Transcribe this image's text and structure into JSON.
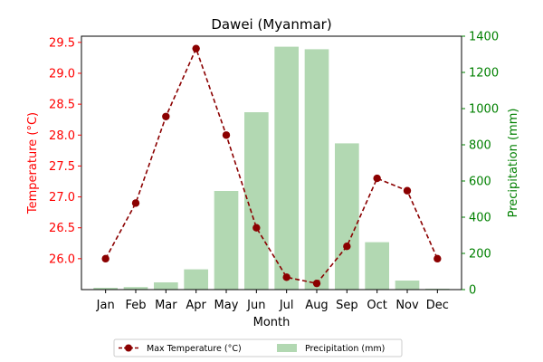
{
  "chart_data": {
    "type": "bar+line",
    "title": "Dawei (Myanmar)",
    "xlabel": "Month",
    "ylabel_left": "Temperature (°C)",
    "ylabel_right": "Precipitation (mm)",
    "categories": [
      "Jan",
      "Feb",
      "Mar",
      "Apr",
      "May",
      "Jun",
      "Jul",
      "Aug",
      "Sep",
      "Oct",
      "Nov",
      "Dec"
    ],
    "series": [
      {
        "name": "Max Temperature (°C)",
        "type": "line",
        "axis": "left",
        "values": [
          26.0,
          26.9,
          28.3,
          29.4,
          28.0,
          26.5,
          25.7,
          25.6,
          26.2,
          27.3,
          27.1,
          26.0
        ]
      },
      {
        "name": "Precipitation (mm)",
        "type": "bar",
        "axis": "right",
        "values": [
          10,
          14,
          40,
          112,
          545,
          980,
          1342,
          1328,
          808,
          262,
          50,
          5
        ]
      }
    ],
    "ylim_left": [
      25.5,
      29.6
    ],
    "ylim_right": [
      0,
      1400
    ],
    "yticks_left": [
      "26.0",
      "26.5",
      "27.0",
      "27.5",
      "28.0",
      "28.5",
      "29.0",
      "29.5"
    ],
    "yticks_right": [
      "0",
      "200",
      "400",
      "600",
      "800",
      "1000",
      "1200",
      "1400"
    ],
    "legend": "bottom-center",
    "grid": false,
    "colors": {
      "line": "#8b0000",
      "bar": "#b2d8b2",
      "left_axis": "#ff0000",
      "right_axis": "#008000"
    }
  }
}
